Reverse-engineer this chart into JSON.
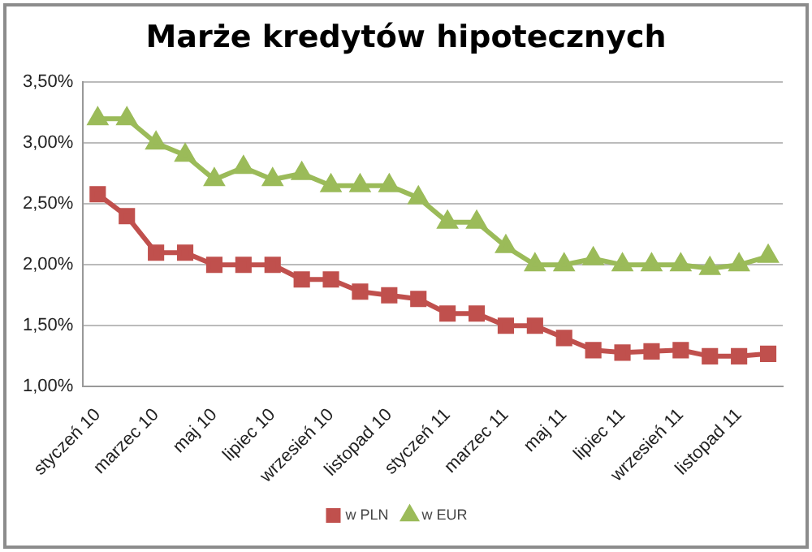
{
  "chart_data": {
    "type": "line",
    "title": "Marże kredytów hipotecznych",
    "categories": [
      "styczeń 10",
      null,
      "marzec 10",
      null,
      "maj 10",
      null,
      "lipiec 10",
      null,
      "wrzesień 10",
      null,
      "listopad 10",
      null,
      "styczeń 11",
      null,
      "marzec 11",
      null,
      "maj 11",
      null,
      "lipiec 11",
      null,
      "wrzesień 11",
      null,
      "listopad 11",
      null
    ],
    "series": [
      {
        "name": "w PLN",
        "color": "#c0504d",
        "marker": "square",
        "values": [
          2.58,
          2.4,
          2.1,
          2.1,
          2.0,
          2.0,
          2.0,
          1.88,
          1.88,
          1.78,
          1.75,
          1.72,
          1.6,
          1.6,
          1.5,
          1.5,
          1.4,
          1.3,
          1.28,
          1.29,
          1.3,
          1.25,
          1.25,
          1.27
        ]
      },
      {
        "name": "w EUR",
        "color": "#9bbb59",
        "marker": "triangle",
        "values": [
          3.2,
          3.2,
          3.0,
          2.9,
          2.7,
          2.8,
          2.7,
          2.75,
          2.65,
          2.65,
          2.65,
          2.55,
          2.35,
          2.35,
          2.15,
          2.0,
          2.0,
          2.05,
          2.0,
          2.0,
          2.0,
          1.97,
          2.0,
          2.07
        ]
      }
    ],
    "ylim": [
      1,
      3.5
    ],
    "yticks": [
      {
        "value": 1,
        "label": "1,00%"
      },
      {
        "value": 1.5,
        "label": "1,50%"
      },
      {
        "value": 2,
        "label": "2,00%"
      },
      {
        "value": 2.5,
        "label": "2,50%"
      },
      {
        "value": 3,
        "label": "3,00%"
      },
      {
        "value": 3.5,
        "label": "3,50%"
      }
    ],
    "grid": "y",
    "legend": "bottom",
    "line_style": "solid"
  }
}
